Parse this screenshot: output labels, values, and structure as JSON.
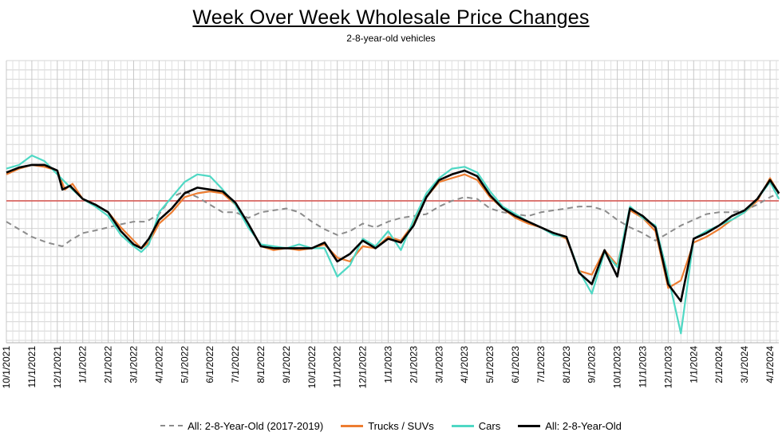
{
  "chart_data": {
    "type": "line",
    "title": "Week Over Week Wholesale Price Changes",
    "subtitle": "2-8-year-old vehicles",
    "xlabel": "",
    "ylabel": "",
    "grid": true,
    "reference_line_color": "#d9534f",
    "x_tick_labels": [
      "10/1/2021",
      "11/1/2021",
      "12/1/2021",
      "1/1/2022",
      "2/1/2022",
      "3/1/2022",
      "4/1/2022",
      "5/1/2022",
      "6/1/2022",
      "7/1/2022",
      "8/1/2022",
      "9/1/2022",
      "10/1/2022",
      "11/1/2022",
      "12/1/2022",
      "1/1/2023",
      "2/1/2023",
      "3/1/2023",
      "4/1/2023",
      "5/1/2023",
      "6/1/2023",
      "7/1/2023",
      "8/1/2023",
      "9/1/2023",
      "10/1/2023",
      "11/1/2023",
      "12/1/2023",
      "1/1/2024",
      "2/1/2024",
      "3/1/2024",
      "4/1/2024"
    ],
    "legend_position": "bottom",
    "series": [
      {
        "name": "All: 2-8-Year-Old (2017-2019)",
        "color": "#8c8c8c",
        "dash": true,
        "points": [
          [
            0,
            -0.55
          ],
          [
            0.5,
            -0.75
          ],
          [
            1,
            -0.95
          ],
          [
            1.6,
            -1.1
          ],
          [
            2.2,
            -1.2
          ],
          [
            2.5,
            -1.05
          ],
          [
            3,
            -0.85
          ],
          [
            3.5,
            -0.78
          ],
          [
            4,
            -0.7
          ],
          [
            4.5,
            -0.62
          ],
          [
            5,
            -0.55
          ],
          [
            5.5,
            -0.55
          ],
          [
            6,
            -0.35
          ],
          [
            6.5,
            0.1
          ],
          [
            7,
            0.25
          ],
          [
            7.5,
            0.1
          ],
          [
            8,
            -0.1
          ],
          [
            8.5,
            -0.3
          ],
          [
            9,
            -0.3
          ],
          [
            9.5,
            -0.45
          ],
          [
            10,
            -0.3
          ],
          [
            10.5,
            -0.25
          ],
          [
            11,
            -0.2
          ],
          [
            11.5,
            -0.3
          ],
          [
            12,
            -0.55
          ],
          [
            12.5,
            -0.75
          ],
          [
            13,
            -0.9
          ],
          [
            13.5,
            -0.8
          ],
          [
            14,
            -0.6
          ],
          [
            14.5,
            -0.7
          ],
          [
            15,
            -0.55
          ],
          [
            15.5,
            -0.45
          ],
          [
            16,
            -0.4
          ],
          [
            16.5,
            -0.35
          ],
          [
            17,
            -0.15
          ],
          [
            17.5,
            0.0
          ],
          [
            18,
            0.1
          ],
          [
            18.5,
            0.05
          ],
          [
            19,
            -0.2
          ],
          [
            19.5,
            -0.3
          ],
          [
            20,
            -0.35
          ],
          [
            20.5,
            -0.4
          ],
          [
            21,
            -0.3
          ],
          [
            21.5,
            -0.25
          ],
          [
            22,
            -0.2
          ],
          [
            22.5,
            -0.15
          ],
          [
            23,
            -0.15
          ],
          [
            23.5,
            -0.25
          ],
          [
            24,
            -0.5
          ],
          [
            24.5,
            -0.7
          ],
          [
            25,
            -0.85
          ],
          [
            25.5,
            -1.05
          ],
          [
            26,
            -0.85
          ],
          [
            26.5,
            -0.65
          ],
          [
            27,
            -0.5
          ],
          [
            27.5,
            -0.35
          ],
          [
            28,
            -0.3
          ],
          [
            28.5,
            -0.3
          ],
          [
            29,
            -0.25
          ],
          [
            29.5,
            -0.1
          ],
          [
            30,
            0.1
          ],
          [
            30.35,
            0.2
          ]
        ]
      },
      {
        "name": "Trucks / SUVs",
        "color": "#ed7d31",
        "dash": false,
        "points": [
          [
            0,
            0.7
          ],
          [
            0.5,
            0.85
          ],
          [
            1,
            0.95
          ],
          [
            1.5,
            0.9
          ],
          [
            2,
            0.8
          ],
          [
            2.3,
            0.3
          ],
          [
            2.6,
            0.45
          ],
          [
            3,
            0.05
          ],
          [
            3.5,
            -0.1
          ],
          [
            4,
            -0.3
          ],
          [
            4.5,
            -0.7
          ],
          [
            5,
            -1.05
          ],
          [
            5.3,
            -1.25
          ],
          [
            5.6,
            -1.1
          ],
          [
            6,
            -0.6
          ],
          [
            6.5,
            -0.3
          ],
          [
            7,
            0.1
          ],
          [
            7.5,
            0.2
          ],
          [
            8,
            0.25
          ],
          [
            8.5,
            0.2
          ],
          [
            9,
            -0.1
          ],
          [
            9.5,
            -0.6
          ],
          [
            10,
            -1.2
          ],
          [
            10.5,
            -1.3
          ],
          [
            11,
            -1.25
          ],
          [
            11.5,
            -1.3
          ],
          [
            12,
            -1.25
          ],
          [
            12.5,
            -1.15
          ],
          [
            13,
            -1.5
          ],
          [
            13.5,
            -1.6
          ],
          [
            14,
            -1.2
          ],
          [
            14.5,
            -1.25
          ],
          [
            15,
            -0.95
          ],
          [
            15.5,
            -1.05
          ],
          [
            16,
            -0.6
          ],
          [
            16.5,
            0.1
          ],
          [
            17,
            0.5
          ],
          [
            17.5,
            0.6
          ],
          [
            18,
            0.7
          ],
          [
            18.5,
            0.55
          ],
          [
            19,
            0.1
          ],
          [
            19.5,
            -0.2
          ],
          [
            20,
            -0.45
          ],
          [
            20.5,
            -0.6
          ],
          [
            21,
            -0.7
          ],
          [
            21.5,
            -0.85
          ],
          [
            22,
            -1.0
          ],
          [
            22.5,
            -1.85
          ],
          [
            23,
            -1.95
          ],
          [
            23.5,
            -1.3
          ],
          [
            24,
            -1.7
          ],
          [
            24.5,
            -0.25
          ],
          [
            25,
            -0.45
          ],
          [
            25.5,
            -0.8
          ],
          [
            26,
            -2.3
          ],
          [
            26.5,
            -2.1
          ],
          [
            27,
            -1.1
          ],
          [
            27.5,
            -0.95
          ],
          [
            28,
            -0.75
          ],
          [
            28.5,
            -0.5
          ],
          [
            29,
            -0.3
          ],
          [
            29.5,
            0.0
          ],
          [
            30,
            0.6
          ],
          [
            30.35,
            0.2
          ]
        ]
      },
      {
        "name": "Cars",
        "color": "#4fd8c4",
        "dash": false,
        "points": [
          [
            0,
            0.85
          ],
          [
            0.5,
            0.95
          ],
          [
            1,
            1.2
          ],
          [
            1.5,
            1.05
          ],
          [
            2,
            0.7
          ],
          [
            2.3,
            0.5
          ],
          [
            2.6,
            0.3
          ],
          [
            3,
            0.05
          ],
          [
            3.5,
            -0.15
          ],
          [
            4,
            -0.4
          ],
          [
            4.5,
            -0.9
          ],
          [
            5,
            -1.2
          ],
          [
            5.3,
            -1.35
          ],
          [
            5.6,
            -1.15
          ],
          [
            6,
            -0.3
          ],
          [
            6.5,
            0.1
          ],
          [
            7,
            0.5
          ],
          [
            7.5,
            0.7
          ],
          [
            8,
            0.65
          ],
          [
            8.5,
            0.3
          ],
          [
            9,
            -0.1
          ],
          [
            9.5,
            -0.7
          ],
          [
            10,
            -1.15
          ],
          [
            10.5,
            -1.2
          ],
          [
            11,
            -1.25
          ],
          [
            11.5,
            -1.15
          ],
          [
            12,
            -1.25
          ],
          [
            12.5,
            -1.25
          ],
          [
            13,
            -2.0
          ],
          [
            13.5,
            -1.7
          ],
          [
            14,
            -1.0
          ],
          [
            14.5,
            -1.2
          ],
          [
            15,
            -0.8
          ],
          [
            15.5,
            -1.3
          ],
          [
            16,
            -0.5
          ],
          [
            16.5,
            0.2
          ],
          [
            17,
            0.6
          ],
          [
            17.5,
            0.85
          ],
          [
            18,
            0.9
          ],
          [
            18.5,
            0.75
          ],
          [
            19,
            0.25
          ],
          [
            19.5,
            -0.15
          ],
          [
            20,
            -0.35
          ],
          [
            20.5,
            -0.55
          ],
          [
            21,
            -0.7
          ],
          [
            21.5,
            -0.9
          ],
          [
            22,
            -0.95
          ],
          [
            22.5,
            -1.85
          ],
          [
            23,
            -2.45
          ],
          [
            23.5,
            -1.35
          ],
          [
            24,
            -1.75
          ],
          [
            24.5,
            -0.15
          ],
          [
            25,
            -0.45
          ],
          [
            25.5,
            -0.65
          ],
          [
            26,
            -2.0
          ],
          [
            26.5,
            -3.5
          ],
          [
            27,
            -1.0
          ],
          [
            27.5,
            -0.8
          ],
          [
            28,
            -0.65
          ],
          [
            28.5,
            -0.5
          ],
          [
            29,
            -0.3
          ],
          [
            29.5,
            0.05
          ],
          [
            30,
            0.5
          ],
          [
            30.35,
            0.05
          ]
        ]
      },
      {
        "name": "All: 2-8-Year-Old",
        "color": "#000000",
        "dash": false,
        "points": [
          [
            0,
            0.75
          ],
          [
            0.5,
            0.88
          ],
          [
            1,
            0.95
          ],
          [
            1.5,
            0.95
          ],
          [
            2,
            0.8
          ],
          [
            2.2,
            0.3
          ],
          [
            2.5,
            0.4
          ],
          [
            3,
            0.05
          ],
          [
            3.5,
            -0.1
          ],
          [
            4,
            -0.3
          ],
          [
            4.5,
            -0.8
          ],
          [
            5,
            -1.15
          ],
          [
            5.3,
            -1.25
          ],
          [
            5.6,
            -1.0
          ],
          [
            6,
            -0.5
          ],
          [
            6.5,
            -0.2
          ],
          [
            7,
            0.2
          ],
          [
            7.5,
            0.35
          ],
          [
            8,
            0.3
          ],
          [
            8.5,
            0.25
          ],
          [
            9,
            -0.05
          ],
          [
            9.5,
            -0.6
          ],
          [
            10,
            -1.2
          ],
          [
            10.5,
            -1.25
          ],
          [
            11,
            -1.25
          ],
          [
            11.5,
            -1.25
          ],
          [
            12,
            -1.25
          ],
          [
            12.5,
            -1.1
          ],
          [
            13,
            -1.6
          ],
          [
            13.5,
            -1.4
          ],
          [
            14,
            -1.05
          ],
          [
            14.5,
            -1.25
          ],
          [
            15,
            -1.0
          ],
          [
            15.5,
            -1.1
          ],
          [
            16,
            -0.65
          ],
          [
            16.5,
            0.1
          ],
          [
            17,
            0.55
          ],
          [
            17.5,
            0.7
          ],
          [
            18,
            0.8
          ],
          [
            18.5,
            0.65
          ],
          [
            19,
            0.15
          ],
          [
            19.5,
            -0.2
          ],
          [
            20,
            -0.4
          ],
          [
            20.5,
            -0.55
          ],
          [
            21,
            -0.7
          ],
          [
            21.5,
            -0.85
          ],
          [
            22,
            -0.95
          ],
          [
            22.5,
            -1.9
          ],
          [
            23,
            -2.2
          ],
          [
            23.5,
            -1.3
          ],
          [
            24,
            -2.0
          ],
          [
            24.5,
            -0.2
          ],
          [
            25,
            -0.4
          ],
          [
            25.5,
            -0.7
          ],
          [
            26,
            -2.2
          ],
          [
            26.5,
            -2.65
          ],
          [
            27,
            -1.0
          ],
          [
            27.5,
            -0.85
          ],
          [
            28,
            -0.65
          ],
          [
            28.5,
            -0.4
          ],
          [
            29,
            -0.25
          ],
          [
            29.5,
            0.05
          ],
          [
            30,
            0.55
          ],
          [
            30.35,
            0.2
          ]
        ]
      }
    ]
  },
  "legend": {
    "items": [
      {
        "label": "All: 2-8-Year-Old (2017-2019)",
        "color": "#8c8c8c",
        "dashed": true
      },
      {
        "label": "Trucks / SUVs",
        "color": "#ed7d31",
        "dashed": false
      },
      {
        "label": "Cars",
        "color": "#4fd8c4",
        "dashed": false
      },
      {
        "label": "All: 2-8-Year-Old",
        "color": "#000000",
        "dashed": false
      }
    ]
  }
}
